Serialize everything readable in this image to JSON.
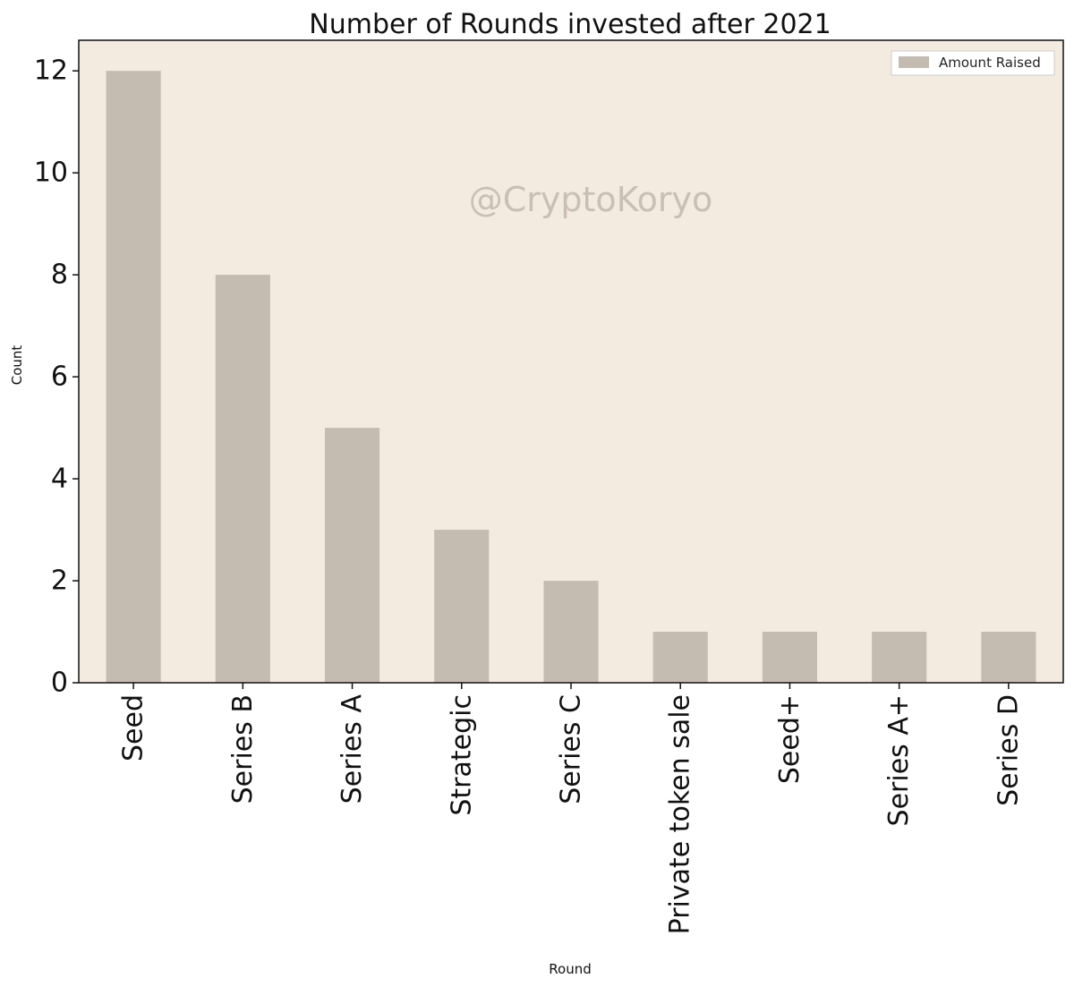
{
  "chart_data": {
    "type": "bar",
    "title": "Number of Rounds invested after 2021",
    "xlabel": "Round",
    "ylabel": "Count",
    "categories": [
      "Seed",
      "Series B",
      "Series A",
      "Strategic",
      "Series C",
      "Private token sale",
      "Seed+",
      "Series A+",
      "Series D"
    ],
    "series": [
      {
        "name": "Amount Raised",
        "values": [
          12,
          8,
          5,
          3,
          2,
          1,
          1,
          1,
          1
        ]
      }
    ],
    "ylim": [
      0,
      12.6
    ],
    "yticks": [
      0,
      2,
      4,
      6,
      8,
      10,
      12
    ],
    "grid": false,
    "legend_position": "top-right",
    "watermark": "@CryptoKoryo",
    "colors": {
      "bar": "#c4bbb1",
      "plot_background": "#f3ebe0",
      "axis": "#111111"
    }
  }
}
